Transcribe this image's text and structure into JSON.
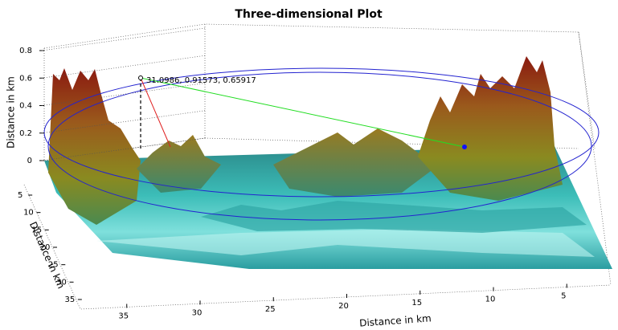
{
  "chart_data": {
    "type": "surface3d",
    "title": "Three-dimensional Plot",
    "xlabel": "Distance in km",
    "ylabel": "Distance in km",
    "zlabel": "Distance in km",
    "xlim": [
      38,
      2
    ],
    "xticks": [
      35,
      30,
      25,
      20,
      15,
      10,
      5
    ],
    "ylim": [
      2,
      38
    ],
    "yticks": [
      5,
      10,
      15,
      20,
      25,
      30,
      35
    ],
    "zlim": [
      0,
      0.8
    ],
    "zticks": [
      0,
      0.2,
      0.4,
      0.6,
      0.8
    ],
    "annotation": "31.0986, 0.91573, 0.65917",
    "grid": true
  }
}
